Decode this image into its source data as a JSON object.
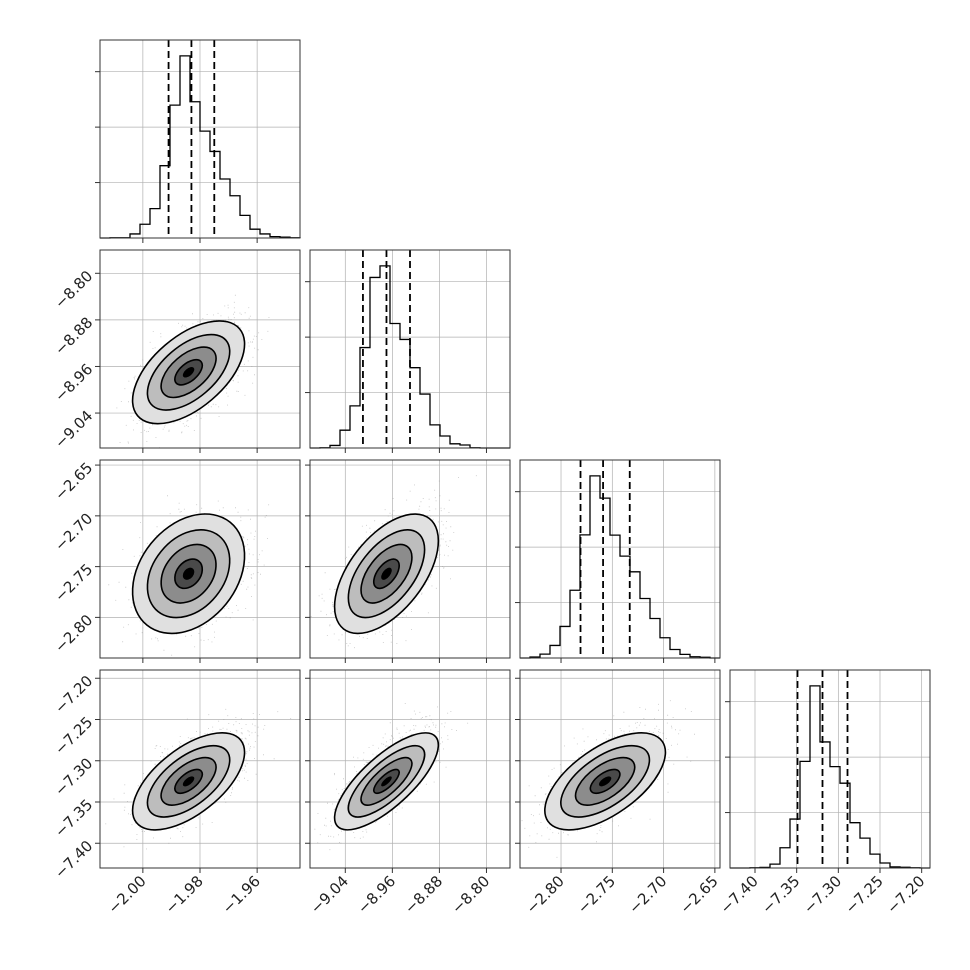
{
  "chart_data": {
    "type": "corner",
    "n_params": 4,
    "grid": true,
    "colors": {
      "line": "#000000",
      "scatter": "#9a9a9a",
      "grid": "#b0b0b0"
    },
    "params": [
      {
        "range": [
          -2.015,
          -1.945
        ],
        "ticks": [
          -2.0,
          -1.98,
          -1.96
        ],
        "tick_labels": [
          "−2.00",
          "−1.98",
          "−1.96"
        ],
        "mean": -1.983,
        "sd": 0.008,
        "quantiles": [
          -1.991,
          -1.983,
          -1.975
        ],
        "hist_max": 125,
        "hist_ticks": [
          50,
          100
        ]
      },
      {
        "range": [
          -9.1,
          -8.76
        ],
        "ticks": [
          -8.8,
          -8.88,
          -8.96,
          -9.04
        ],
        "tick_labels": [
          "−8.80",
          "−8.88",
          "−8.96",
          "−9.04"
        ],
        "xticks": [
          -9.04,
          -8.96,
          -8.88,
          -8.8
        ],
        "xtick_labels": [
          "−9.04",
          "−8.96",
          "−8.88",
          "−8.80"
        ],
        "mean": -8.97,
        "sd": 0.036,
        "quantiles": [
          -9.01,
          -8.97,
          -8.93
        ],
        "hist_max": 150,
        "hist_ticks": [
          50,
          100
        ]
      },
      {
        "range": [
          -2.84,
          -2.645
        ],
        "ticks": [
          -2.65,
          -2.7,
          -2.75,
          -2.8
        ],
        "tick_labels": [
          "−2.65",
          "−2.70",
          "−2.75",
          "−2.80"
        ],
        "xticks": [
          -2.8,
          -2.75,
          -2.7,
          -2.65
        ],
        "xtick_labels": [
          "−2.80",
          "−2.75",
          "−2.70",
          "−2.65"
        ],
        "mean": -2.757,
        "sd": 0.024,
        "quantiles": [
          -2.781,
          -2.759,
          -2.733
        ],
        "hist_max": 120,
        "hist_ticks": [
          50,
          100
        ]
      },
      {
        "range": [
          -7.43,
          -7.19
        ],
        "ticks": [
          -7.2,
          -7.25,
          -7.3,
          -7.35,
          -7.4
        ],
        "tick_labels": [
          "−7.20",
          "−7.25",
          "−7.30",
          "−7.35",
          "−7.40"
        ],
        "xticks": [
          -7.4,
          -7.35,
          -7.3,
          -7.25,
          -7.2
        ],
        "xtick_labels": [
          "−7.40",
          "−7.35",
          "−7.30",
          "−7.25",
          "−7.20"
        ],
        "mean": -7.32,
        "sd": 0.024,
        "quantiles": [
          -7.349,
          -7.319,
          -7.289
        ],
        "hist_max": 130,
        "hist_ticks": [
          50,
          100
        ]
      }
    ],
    "pairs": [
      {
        "x": 0,
        "y": 1,
        "rho": 0.55,
        "peak": [
          -1.984,
          -8.97
        ]
      },
      {
        "x": 0,
        "y": 2,
        "rho": 0.3,
        "peak": [
          -1.984,
          -2.757
        ]
      },
      {
        "x": 1,
        "y": 2,
        "rho": 0.55,
        "peak": [
          -8.97,
          -2.757
        ]
      },
      {
        "x": 0,
        "y": 3,
        "rho": 0.6,
        "peak": [
          -1.984,
          -7.325
        ]
      },
      {
        "x": 1,
        "y": 3,
        "rho": 0.75,
        "peak": [
          -8.97,
          -7.325
        ]
      },
      {
        "x": 2,
        "y": 3,
        "rho": 0.6,
        "peak": [
          -2.757,
          -7.325
        ]
      }
    ]
  }
}
